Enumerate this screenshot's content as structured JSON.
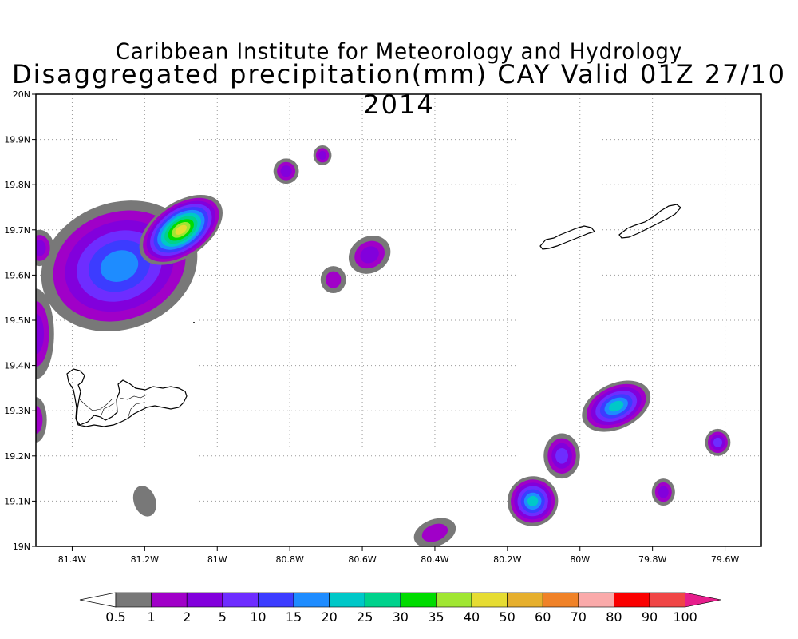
{
  "title_line1": "Caribbean Institute for Meteorology and Hydrology",
  "title_line2": "Disaggregated precipitation(mm) CAY Valid 01Z 27/10 2014",
  "map": {
    "lon_min": -81.5,
    "lon_max": -79.5,
    "lat_min": 19.0,
    "lat_max": 20.0,
    "lon_ticks": [
      {
        "value": -81.4,
        "label": "81.4W"
      },
      {
        "value": -81.2,
        "label": "81.2W"
      },
      {
        "value": -81.0,
        "label": "81W"
      },
      {
        "value": -80.8,
        "label": "80.8W"
      },
      {
        "value": -80.6,
        "label": "80.6W"
      },
      {
        "value": -80.4,
        "label": "80.4W"
      },
      {
        "value": -80.2,
        "label": "80.2W"
      },
      {
        "value": -80.0,
        "label": "80W"
      },
      {
        "value": -79.8,
        "label": "79.8W"
      },
      {
        "value": -79.6,
        "label": "79.6W"
      }
    ],
    "lat_ticks": [
      {
        "value": 19.0,
        "label": "19N"
      },
      {
        "value": 19.1,
        "label": "19.1N"
      },
      {
        "value": 19.2,
        "label": "19.2N"
      },
      {
        "value": 19.3,
        "label": "19.3N"
      },
      {
        "value": 19.4,
        "label": "19.4N"
      },
      {
        "value": 19.5,
        "label": "19.5N"
      },
      {
        "value": 19.6,
        "label": "19.6N"
      },
      {
        "value": 19.7,
        "label": "19.7N"
      },
      {
        "value": 19.8,
        "label": "19.8N"
      },
      {
        "value": 19.9,
        "label": "19.9N"
      },
      {
        "value": 20.0,
        "label": "20N"
      }
    ],
    "grid": true
  },
  "colorbar": {
    "levels": [
      "0.5",
      "1",
      "2",
      "5",
      "10",
      "15",
      "20",
      "25",
      "30",
      "35",
      "40",
      "50",
      "60",
      "70",
      "80",
      "90",
      "100"
    ],
    "colors": [
      "#787878",
      "#a000c8",
      "#8200dc",
      "#6e2dff",
      "#3c3cff",
      "#1e8cff",
      "#00c8c8",
      "#00d28c",
      "#00dc00",
      "#a0e632",
      "#e6dc32",
      "#e6af2d",
      "#f08228",
      "#faaaaa",
      "#fa0000",
      "#f04646",
      "#e61e8c"
    ],
    "end_colors": {
      "low": "#ffffff",
      "high": "#e61e8c"
    }
  },
  "precip_cells": [
    {
      "lon": -81.27,
      "lat": 19.62,
      "rx": 0.22,
      "ry": 0.14,
      "rot": -20,
      "levels": [
        0.5,
        1,
        2,
        5,
        10,
        15
      ]
    },
    {
      "lon": -81.1,
      "lat": 19.7,
      "rx": 0.13,
      "ry": 0.06,
      "rot": -35,
      "levels": [
        0.5,
        1,
        2,
        5,
        10,
        15,
        20,
        25,
        30,
        35,
        40
      ]
    },
    {
      "lon": -81.49,
      "lat": 19.66,
      "rx": 0.04,
      "ry": 0.04,
      "rot": 0,
      "levels": [
        0.5,
        1,
        2
      ]
    },
    {
      "lon": -81.5,
      "lat": 19.47,
      "rx": 0.05,
      "ry": 0.1,
      "rot": 0,
      "levels": [
        0.5,
        1,
        2
      ]
    },
    {
      "lon": -81.5,
      "lat": 19.28,
      "rx": 0.03,
      "ry": 0.05,
      "rot": 0,
      "levels": [
        0.5,
        1
      ]
    },
    {
      "lon": -80.81,
      "lat": 19.83,
      "rx": 0.035,
      "ry": 0.028,
      "rot": 0,
      "levels": [
        0.5,
        1,
        2
      ]
    },
    {
      "lon": -80.71,
      "lat": 19.865,
      "rx": 0.025,
      "ry": 0.022,
      "rot": 0,
      "levels": [
        0.5,
        1,
        2
      ]
    },
    {
      "lon": -80.58,
      "lat": 19.645,
      "rx": 0.06,
      "ry": 0.04,
      "rot": -30,
      "levels": [
        0.5,
        1,
        2
      ]
    },
    {
      "lon": -80.68,
      "lat": 19.59,
      "rx": 0.035,
      "ry": 0.03,
      "rot": 0,
      "levels": [
        0.5,
        1
      ]
    },
    {
      "lon": -81.2,
      "lat": 19.1,
      "rx": 0.03,
      "ry": 0.035,
      "rot": -20,
      "levels": [
        0.5
      ]
    },
    {
      "lon": -80.4,
      "lat": 19.03,
      "rx": 0.06,
      "ry": 0.03,
      "rot": -20,
      "levels": [
        0.5,
        1
      ]
    },
    {
      "lon": -80.13,
      "lat": 19.1,
      "rx": 0.07,
      "ry": 0.055,
      "rot": -20,
      "levels": [
        0.5,
        1,
        2,
        5,
        10,
        15,
        20
      ]
    },
    {
      "lon": -80.05,
      "lat": 19.2,
      "rx": 0.05,
      "ry": 0.05,
      "rot": 0,
      "levels": [
        0.5,
        1,
        2,
        5
      ]
    },
    {
      "lon": -79.9,
      "lat": 19.31,
      "rx": 0.1,
      "ry": 0.05,
      "rot": -25,
      "levels": [
        0.5,
        1,
        2,
        5,
        10,
        15,
        20
      ]
    },
    {
      "lon": -79.77,
      "lat": 19.12,
      "rx": 0.032,
      "ry": 0.03,
      "rot": 0,
      "levels": [
        0.5,
        1,
        2
      ]
    },
    {
      "lon": -79.62,
      "lat": 19.23,
      "rx": 0.035,
      "ry": 0.03,
      "rot": 0,
      "levels": [
        0.5,
        1,
        2,
        5
      ]
    }
  ]
}
